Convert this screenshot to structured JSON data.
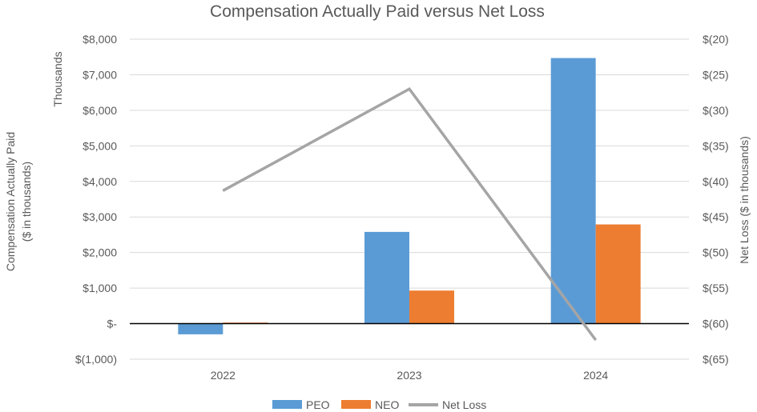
{
  "chart_data": {
    "type": "bar",
    "title": "Compensation Actually Paid versus Net Loss",
    "categories": [
      "2022",
      "2023",
      "2024"
    ],
    "series": [
      {
        "name": "PEO",
        "values": [
          -300,
          2580,
          7470
        ],
        "color": "#5B9BD5",
        "axis": "left",
        "kind": "bar"
      },
      {
        "name": "NEO",
        "values": [
          30,
          930,
          2790
        ],
        "color": "#ED7D31",
        "axis": "left",
        "kind": "bar"
      },
      {
        "name": "Net Loss",
        "values": [
          -41.3,
          -27.0,
          -62.3
        ],
        "color": "#A5A5A5",
        "axis": "right",
        "kind": "line"
      }
    ],
    "y_left": {
      "label_line1": "Compensation Actually Paid",
      "label_line2": "($ in thousands)",
      "unit_label": "Thousands",
      "ylim": [
        -1000,
        8000
      ],
      "ticks": [
        8000,
        7000,
        6000,
        5000,
        4000,
        3000,
        2000,
        1000,
        0,
        -1000
      ],
      "tick_labels": [
        "$8,000",
        "$7,000",
        "$6,000",
        "$5,000",
        "$4,000",
        "$3,000",
        "$2,000",
        "$1,000",
        "$-",
        "$(1,000)"
      ]
    },
    "y_right": {
      "label": "Net Loss ($ in thousands)",
      "ylim": [
        -65,
        -20
      ],
      "ticks": [
        -20,
        -25,
        -30,
        -35,
        -40,
        -45,
        -50,
        -55,
        -60,
        -65
      ],
      "tick_labels": [
        "$(20)",
        "$(25)",
        "$(30)",
        "$(35)",
        "$(40)",
        "$(45)",
        "$(50)",
        "$(55)",
        "$(60)",
        "$(65)"
      ]
    },
    "grid": true,
    "legend_position": "bottom"
  }
}
